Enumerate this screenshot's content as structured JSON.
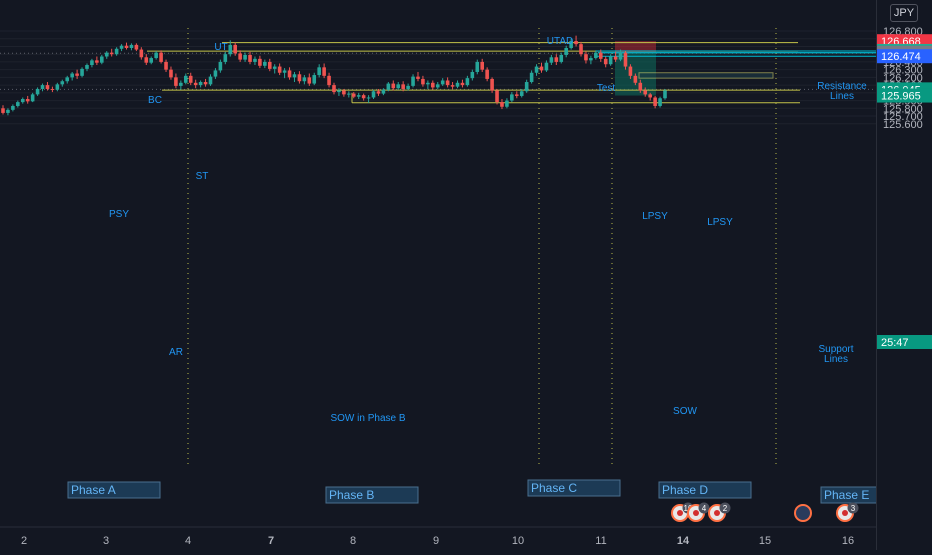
{
  "currency_badge": "JPY",
  "chart_data": {
    "type": "candlestick",
    "instrument_currency": "JPY",
    "x_tick_labels": [
      "2",
      "3",
      "4",
      "7",
      "8",
      "9",
      "10",
      "11",
      "14",
      "15",
      "16"
    ],
    "y_tick_labels": [
      "126.800",
      "126.700",
      "126.600",
      "126.500",
      "126.400",
      "126.300",
      "126.200",
      "126.100",
      "125.900",
      "125.800",
      "125.700",
      "125.600"
    ],
    "ylim": [
      125.56,
      126.86
    ],
    "price_badges": [
      {
        "label": "126.668",
        "price": 126.668,
        "color": "#f23645"
      },
      {
        "label": "126.542",
        "price": 126.542,
        "color": "#22ab94"
      },
      {
        "label": "126.519",
        "price": 126.519,
        "color": "#089981"
      },
      {
        "label": "126.518",
        "price": 126.518,
        "color": "#787b86"
      },
      {
        "label": "126.474",
        "price": 126.474,
        "color": "#2962ff"
      },
      {
        "label": "126.045",
        "price": 126.045,
        "color": "#089981"
      },
      {
        "label": "25:47",
        "price": 126.0,
        "color": "#089981"
      },
      {
        "label": "125.965",
        "price": 125.965,
        "color": "#089981"
      }
    ],
    "annotations": [
      "BC",
      "UT",
      "UTAD",
      "Test",
      "PSY",
      "ST",
      "AR",
      "SOW in Phase B",
      "LPSY",
      "LPSY",
      "SOW",
      "Resistance Lines",
      "Support Lines"
    ],
    "phases": [
      "Phase A",
      "Phase B",
      "Phase C",
      "Phase D",
      "Phase E"
    ],
    "levels": {
      "resistance_high": 126.65,
      "resistance_low": 126.54,
      "support": 126.035,
      "sow_level": 125.872
    },
    "event_badges": [
      "10",
      "4",
      "2",
      "3"
    ],
    "ohlc_series": [
      {
        "o": 125.8,
        "h": 125.84,
        "l": 125.72,
        "c": 125.74
      },
      {
        "o": 125.74,
        "h": 125.8,
        "l": 125.71,
        "c": 125.78
      },
      {
        "o": 125.78,
        "h": 125.85,
        "l": 125.76,
        "c": 125.83
      },
      {
        "o": 125.83,
        "h": 125.9,
        "l": 125.81,
        "c": 125.88
      },
      {
        "o": 125.88,
        "h": 125.94,
        "l": 125.86,
        "c": 125.92
      },
      {
        "o": 125.92,
        "h": 125.96,
        "l": 125.86,
        "c": 125.89
      },
      {
        "o": 125.89,
        "h": 126.0,
        "l": 125.88,
        "c": 125.98
      },
      {
        "o": 125.98,
        "h": 126.07,
        "l": 125.96,
        "c": 126.05
      },
      {
        "o": 126.05,
        "h": 126.12,
        "l": 126.02,
        "c": 126.1
      },
      {
        "o": 126.1,
        "h": 126.14,
        "l": 126.03,
        "c": 126.05
      },
      {
        "o": 126.05,
        "h": 126.08,
        "l": 126.01,
        "c": 126.04
      },
      {
        "o": 126.04,
        "h": 126.13,
        "l": 126.02,
        "c": 126.11
      },
      {
        "o": 126.11,
        "h": 126.17,
        "l": 126.08,
        "c": 126.15
      },
      {
        "o": 126.15,
        "h": 126.22,
        "l": 126.12,
        "c": 126.2
      },
      {
        "o": 126.2,
        "h": 126.27,
        "l": 126.16,
        "c": 126.25
      },
      {
        "o": 126.25,
        "h": 126.3,
        "l": 126.18,
        "c": 126.22
      },
      {
        "o": 126.22,
        "h": 126.33,
        "l": 126.2,
        "c": 126.31
      },
      {
        "o": 126.31,
        "h": 126.38,
        "l": 126.28,
        "c": 126.36
      },
      {
        "o": 126.36,
        "h": 126.44,
        "l": 126.33,
        "c": 126.42
      },
      {
        "o": 126.42,
        "h": 126.47,
        "l": 126.36,
        "c": 126.39
      },
      {
        "o": 126.39,
        "h": 126.49,
        "l": 126.37,
        "c": 126.47
      },
      {
        "o": 126.47,
        "h": 126.54,
        "l": 126.44,
        "c": 126.52
      },
      {
        "o": 126.52,
        "h": 126.57,
        "l": 126.47,
        "c": 126.5
      },
      {
        "o": 126.5,
        "h": 126.59,
        "l": 126.48,
        "c": 126.57
      },
      {
        "o": 126.57,
        "h": 126.63,
        "l": 126.54,
        "c": 126.61
      },
      {
        "o": 126.61,
        "h": 126.65,
        "l": 126.56,
        "c": 126.58
      },
      {
        "o": 126.58,
        "h": 126.64,
        "l": 126.55,
        "c": 126.62
      },
      {
        "o": 126.62,
        "h": 126.64,
        "l": 126.54,
        "c": 126.56
      },
      {
        "o": 126.56,
        "h": 126.59,
        "l": 126.43,
        "c": 126.46
      },
      {
        "o": 126.46,
        "h": 126.5,
        "l": 126.36,
        "c": 126.39
      },
      {
        "o": 126.39,
        "h": 126.47,
        "l": 126.37,
        "c": 126.45
      },
      {
        "o": 126.45,
        "h": 126.54,
        "l": 126.43,
        "c": 126.52
      },
      {
        "o": 126.52,
        "h": 126.55,
        "l": 126.38,
        "c": 126.4
      },
      {
        "o": 126.4,
        "h": 126.43,
        "l": 126.27,
        "c": 126.3
      },
      {
        "o": 126.3,
        "h": 126.34,
        "l": 126.17,
        "c": 126.2
      },
      {
        "o": 126.2,
        "h": 126.25,
        "l": 126.06,
        "c": 126.09
      },
      {
        "o": 126.09,
        "h": 126.16,
        "l": 126.04,
        "c": 126.13
      },
      {
        "o": 126.13,
        "h": 126.25,
        "l": 126.11,
        "c": 126.22
      },
      {
        "o": 126.22,
        "h": 126.26,
        "l": 126.1,
        "c": 126.13
      },
      {
        "o": 126.13,
        "h": 126.17,
        "l": 126.06,
        "c": 126.1
      },
      {
        "o": 126.1,
        "h": 126.16,
        "l": 126.07,
        "c": 126.14
      },
      {
        "o": 126.14,
        "h": 126.18,
        "l": 126.08,
        "c": 126.11
      },
      {
        "o": 126.11,
        "h": 126.24,
        "l": 126.09,
        "c": 126.21
      },
      {
        "o": 126.21,
        "h": 126.32,
        "l": 126.18,
        "c": 126.29
      },
      {
        "o": 126.29,
        "h": 126.43,
        "l": 126.26,
        "c": 126.4
      },
      {
        "o": 126.4,
        "h": 126.53,
        "l": 126.37,
        "c": 126.5
      },
      {
        "o": 126.5,
        "h": 126.68,
        "l": 126.47,
        "c": 126.62
      },
      {
        "o": 126.62,
        "h": 126.65,
        "l": 126.48,
        "c": 126.51
      },
      {
        "o": 126.51,
        "h": 126.55,
        "l": 126.4,
        "c": 126.43
      },
      {
        "o": 126.43,
        "h": 126.52,
        "l": 126.4,
        "c": 126.49
      },
      {
        "o": 126.49,
        "h": 126.53,
        "l": 126.37,
        "c": 126.4
      },
      {
        "o": 126.4,
        "h": 126.47,
        "l": 126.36,
        "c": 126.44
      },
      {
        "o": 126.44,
        "h": 126.48,
        "l": 126.32,
        "c": 126.35
      },
      {
        "o": 126.35,
        "h": 126.43,
        "l": 126.32,
        "c": 126.4
      },
      {
        "o": 126.4,
        "h": 126.44,
        "l": 126.28,
        "c": 126.31
      },
      {
        "o": 126.31,
        "h": 126.37,
        "l": 126.25,
        "c": 126.34
      },
      {
        "o": 126.34,
        "h": 126.38,
        "l": 126.23,
        "c": 126.26
      },
      {
        "o": 126.26,
        "h": 126.32,
        "l": 126.19,
        "c": 126.29
      },
      {
        "o": 126.29,
        "h": 126.33,
        "l": 126.17,
        "c": 126.2
      },
      {
        "o": 126.2,
        "h": 126.27,
        "l": 126.14,
        "c": 126.24
      },
      {
        "o": 126.24,
        "h": 126.28,
        "l": 126.12,
        "c": 126.15
      },
      {
        "o": 126.15,
        "h": 126.23,
        "l": 126.11,
        "c": 126.2
      },
      {
        "o": 126.2,
        "h": 126.25,
        "l": 126.09,
        "c": 126.12
      },
      {
        "o": 126.12,
        "h": 126.26,
        "l": 126.1,
        "c": 126.23
      },
      {
        "o": 126.23,
        "h": 126.37,
        "l": 126.2,
        "c": 126.33
      },
      {
        "o": 126.33,
        "h": 126.38,
        "l": 126.19,
        "c": 126.22
      },
      {
        "o": 126.22,
        "h": 126.26,
        "l": 126.07,
        "c": 126.1
      },
      {
        "o": 126.1,
        "h": 126.13,
        "l": 125.98,
        "c": 126.01
      },
      {
        "o": 126.01,
        "h": 126.06,
        "l": 125.96,
        "c": 126.03
      },
      {
        "o": 126.03,
        "h": 126.05,
        "l": 125.95,
        "c": 125.98
      },
      {
        "o": 125.98,
        "h": 126.02,
        "l": 125.94,
        "c": 125.99
      },
      {
        "o": 125.99,
        "h": 126.01,
        "l": 125.93,
        "c": 125.95
      },
      {
        "o": 125.95,
        "h": 126.0,
        "l": 125.92,
        "c": 125.97
      },
      {
        "o": 125.97,
        "h": 125.99,
        "l": 125.9,
        "c": 125.93
      },
      {
        "o": 125.93,
        "h": 125.97,
        "l": 125.87,
        "c": 125.94
      },
      {
        "o": 125.94,
        "h": 126.04,
        "l": 125.92,
        "c": 126.02
      },
      {
        "o": 126.02,
        "h": 126.05,
        "l": 125.96,
        "c": 125.99
      },
      {
        "o": 125.99,
        "h": 126.06,
        "l": 125.97,
        "c": 126.04
      },
      {
        "o": 126.04,
        "h": 126.14,
        "l": 126.02,
        "c": 126.12
      },
      {
        "o": 126.12,
        "h": 126.16,
        "l": 126.03,
        "c": 126.06
      },
      {
        "o": 126.06,
        "h": 126.14,
        "l": 126.04,
        "c": 126.11
      },
      {
        "o": 126.11,
        "h": 126.15,
        "l": 126.02,
        "c": 126.05
      },
      {
        "o": 126.05,
        "h": 126.12,
        "l": 126.03,
        "c": 126.09
      },
      {
        "o": 126.09,
        "h": 126.24,
        "l": 126.07,
        "c": 126.21
      },
      {
        "o": 126.21,
        "h": 126.27,
        "l": 126.15,
        "c": 126.18
      },
      {
        "o": 126.18,
        "h": 126.22,
        "l": 126.08,
        "c": 126.11
      },
      {
        "o": 126.11,
        "h": 126.16,
        "l": 126.05,
        "c": 126.13
      },
      {
        "o": 126.13,
        "h": 126.16,
        "l": 126.04,
        "c": 126.07
      },
      {
        "o": 126.07,
        "h": 126.14,
        "l": 126.05,
        "c": 126.11
      },
      {
        "o": 126.11,
        "h": 126.19,
        "l": 126.09,
        "c": 126.16
      },
      {
        "o": 126.16,
        "h": 126.2,
        "l": 126.07,
        "c": 126.1
      },
      {
        "o": 126.1,
        "h": 126.14,
        "l": 126.05,
        "c": 126.08
      },
      {
        "o": 126.08,
        "h": 126.16,
        "l": 126.06,
        "c": 126.13
      },
      {
        "o": 126.13,
        "h": 126.17,
        "l": 126.07,
        "c": 126.1
      },
      {
        "o": 126.1,
        "h": 126.22,
        "l": 126.08,
        "c": 126.19
      },
      {
        "o": 126.19,
        "h": 126.3,
        "l": 126.16,
        "c": 126.27
      },
      {
        "o": 126.27,
        "h": 126.43,
        "l": 126.24,
        "c": 126.4
      },
      {
        "o": 126.4,
        "h": 126.44,
        "l": 126.27,
        "c": 126.3
      },
      {
        "o": 126.3,
        "h": 126.33,
        "l": 126.15,
        "c": 126.18
      },
      {
        "o": 126.18,
        "h": 126.2,
        "l": 126.0,
        "c": 126.03
      },
      {
        "o": 126.03,
        "h": 126.05,
        "l": 125.85,
        "c": 125.88
      },
      {
        "o": 125.88,
        "h": 125.92,
        "l": 125.79,
        "c": 125.82
      },
      {
        "o": 125.82,
        "h": 125.93,
        "l": 125.8,
        "c": 125.9
      },
      {
        "o": 125.9,
        "h": 126.01,
        "l": 125.88,
        "c": 125.98
      },
      {
        "o": 125.98,
        "h": 126.02,
        "l": 125.93,
        "c": 125.96
      },
      {
        "o": 125.96,
        "h": 126.05,
        "l": 125.94,
        "c": 126.02
      },
      {
        "o": 126.02,
        "h": 126.17,
        "l": 126.0,
        "c": 126.14
      },
      {
        "o": 126.14,
        "h": 126.29,
        "l": 126.12,
        "c": 126.26
      },
      {
        "o": 126.26,
        "h": 126.37,
        "l": 126.22,
        "c": 126.34
      },
      {
        "o": 126.34,
        "h": 126.39,
        "l": 126.26,
        "c": 126.29
      },
      {
        "o": 126.29,
        "h": 126.42,
        "l": 126.27,
        "c": 126.39
      },
      {
        "o": 126.39,
        "h": 126.49,
        "l": 126.36,
        "c": 126.46
      },
      {
        "o": 126.46,
        "h": 126.5,
        "l": 126.36,
        "c": 126.4
      },
      {
        "o": 126.4,
        "h": 126.52,
        "l": 126.38,
        "c": 126.49
      },
      {
        "o": 126.49,
        "h": 126.61,
        "l": 126.46,
        "c": 126.58
      },
      {
        "o": 126.58,
        "h": 126.7,
        "l": 126.56,
        "c": 126.67
      },
      {
        "o": 126.67,
        "h": 126.74,
        "l": 126.6,
        "c": 126.63
      },
      {
        "o": 126.63,
        "h": 126.66,
        "l": 126.47,
        "c": 126.5
      },
      {
        "o": 126.5,
        "h": 126.54,
        "l": 126.38,
        "c": 126.42
      },
      {
        "o": 126.42,
        "h": 126.48,
        "l": 126.37,
        "c": 126.45
      },
      {
        "o": 126.45,
        "h": 126.55,
        "l": 126.43,
        "c": 126.52
      },
      {
        "o": 126.52,
        "h": 126.56,
        "l": 126.4,
        "c": 126.44
      },
      {
        "o": 126.44,
        "h": 126.47,
        "l": 126.33,
        "c": 126.37
      },
      {
        "o": 126.37,
        "h": 126.5,
        "l": 126.35,
        "c": 126.47
      },
      {
        "o": 126.47,
        "h": 126.53,
        "l": 126.4,
        "c": 126.43
      },
      {
        "o": 126.43,
        "h": 126.56,
        "l": 126.41,
        "c": 126.52
      },
      {
        "o": 126.52,
        "h": 126.54,
        "l": 126.3,
        "c": 126.34
      },
      {
        "o": 126.34,
        "h": 126.37,
        "l": 126.18,
        "c": 126.22
      },
      {
        "o": 126.22,
        "h": 126.25,
        "l": 126.1,
        "c": 126.13
      },
      {
        "o": 126.13,
        "h": 126.17,
        "l": 126.0,
        "c": 126.03
      },
      {
        "o": 126.03,
        "h": 126.07,
        "l": 125.95,
        "c": 125.98
      },
      {
        "o": 125.98,
        "h": 126.0,
        "l": 125.9,
        "c": 125.94
      },
      {
        "o": 125.94,
        "h": 125.96,
        "l": 125.8,
        "c": 125.83
      },
      {
        "o": 125.83,
        "h": 125.95,
        "l": 125.81,
        "c": 125.93
      },
      {
        "o": 125.93,
        "h": 126.05,
        "l": 125.91,
        "c": 126.03
      }
    ]
  }
}
